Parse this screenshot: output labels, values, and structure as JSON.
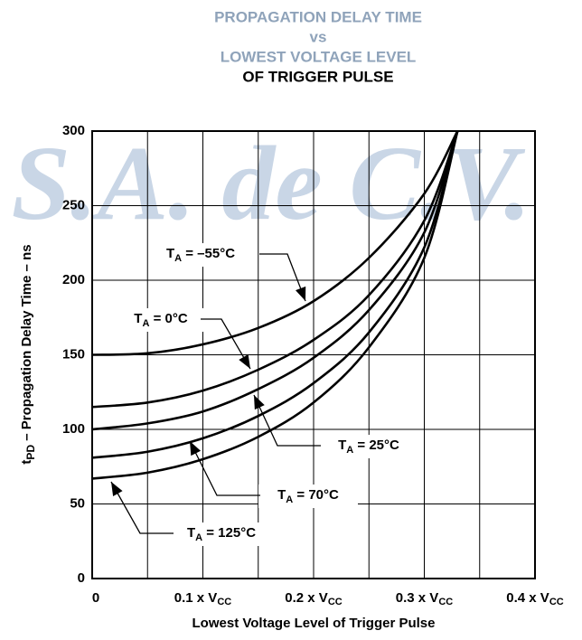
{
  "chart_data": {
    "type": "line",
    "watermark": "S.A. de C.V.",
    "title": [
      "PROPAGATION DELAY TIME",
      "vs",
      "LOWEST VOLTAGE LEVEL",
      "OF TRIGGER PULSE"
    ],
    "ylabel": {
      "symbol": "t",
      "sub": "PD",
      "text": " – Propagation Delay Time – ns"
    },
    "xlabel": "Lowest Voltage Level of Trigger Pulse",
    "x": [
      0,
      0.05,
      0.1,
      0.15,
      0.2,
      0.25,
      0.3,
      0.33
    ],
    "series": [
      {
        "name": "T_A = –55°C",
        "color": "#000000",
        "values": [
          150,
          151,
          157,
          168,
          186,
          215,
          258,
          300
        ]
      },
      {
        "name": "T_A = 0°C",
        "color": "#000000",
        "values": [
          115,
          118,
          126,
          140,
          160,
          190,
          240,
          300
        ]
      },
      {
        "name": "T_A = 25°C",
        "color": "#000000",
        "values": [
          100,
          104,
          112,
          127,
          148,
          180,
          232,
          300
        ]
      },
      {
        "name": "T_A = 70°C",
        "color": "#000000",
        "values": [
          81,
          85,
          94,
          109,
          131,
          165,
          222,
          300
        ]
      },
      {
        "name": "T_A = 125°C",
        "color": "#000000",
        "values": [
          67,
          71,
          80,
          95,
          118,
          155,
          215,
          300
        ]
      }
    ],
    "annotations": [
      {
        "symbol": "T",
        "sub": "A",
        "text": " = –55°C"
      },
      {
        "symbol": "T",
        "sub": "A",
        "text": " = 0°C"
      },
      {
        "symbol": "T",
        "sub": "A",
        "text": " = 25°C"
      },
      {
        "symbol": "T",
        "sub": "A",
        "text": " = 70°C"
      },
      {
        "symbol": "T",
        "sub": "A",
        "text": " = 125°C"
      }
    ],
    "xlim": [
      0,
      0.4
    ],
    "ylim": [
      0,
      300
    ],
    "xticks": [
      0,
      {
        "value": 0.05
      },
      {
        "value": 0.1,
        "label": "0.1 x V",
        "sub": "CC"
      },
      {
        "value": 0.15
      },
      {
        "value": 0.2,
        "label": "0.2 x V",
        "sub": "CC"
      },
      {
        "value": 0.25
      },
      {
        "value": 0.3,
        "label": "0.3 x V",
        "sub": "CC"
      },
      {
        "value": 0.35
      },
      {
        "value": 0.4,
        "label": "0.4 x V",
        "sub": "CC"
      }
    ],
    "yticks": [
      0,
      50,
      100,
      150,
      200,
      250,
      300
    ],
    "grid": true
  }
}
